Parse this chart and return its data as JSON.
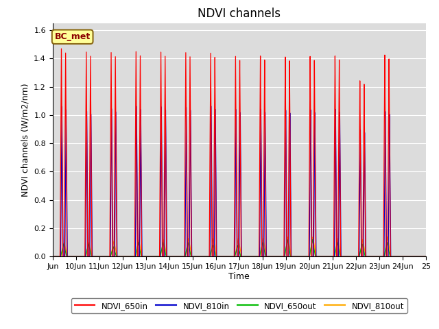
{
  "title": "NDVI channels",
  "xlabel": "Time",
  "ylabel": "NDVI channels (W/m2/nm)",
  "ylim": [
    0,
    1.65
  ],
  "background_color": "#dcdcdc",
  "annotation_text": "BC_met",
  "annotation_bg": "#ffff99",
  "annotation_border": "#8b6914",
  "colors": {
    "NDVI_650in": "#ff0000",
    "NDVI_810in": "#0000cc",
    "NDVI_650out": "#00bb00",
    "NDVI_810out": "#ffaa00"
  },
  "n_days": 15,
  "x_tick_labels": [
    "Jun",
    "10Jun",
    "11Jun",
    "12Jun",
    "13Jun",
    "14Jun",
    "15Jun",
    "16Jun",
    "17Jun",
    "18Jun",
    "19Jun",
    "20Jun",
    "21Jun",
    "22Jun",
    "23Jun",
    "24Jun",
    "25"
  ],
  "peaks_650in": [
    1.47,
    1.45,
    1.45,
    1.46,
    1.46,
    1.46,
    1.46,
    1.44,
    1.44,
    1.43,
    1.43,
    1.43,
    1.25,
    1.43,
    0.0
  ],
  "peaks_810in": [
    1.06,
    1.03,
    1.05,
    1.07,
    1.07,
    1.07,
    1.08,
    1.06,
    1.06,
    1.05,
    1.05,
    1.05,
    0.9,
    1.03,
    0.0
  ],
  "peaks_650out": [
    0.09,
    0.09,
    0.07,
    0.1,
    0.1,
    0.1,
    0.08,
    0.08,
    0.1,
    0.12,
    0.12,
    0.1,
    0.09,
    0.1,
    0.0
  ],
  "peaks_810out": [
    0.1,
    0.1,
    0.11,
    0.12,
    0.12,
    0.13,
    0.13,
    0.13,
    0.13,
    0.14,
    0.14,
    0.13,
    0.12,
    0.14,
    0.0
  ],
  "title_fontsize": 12,
  "axis_fontsize": 9,
  "tick_fontsize": 8,
  "annotation_fontsize": 9
}
